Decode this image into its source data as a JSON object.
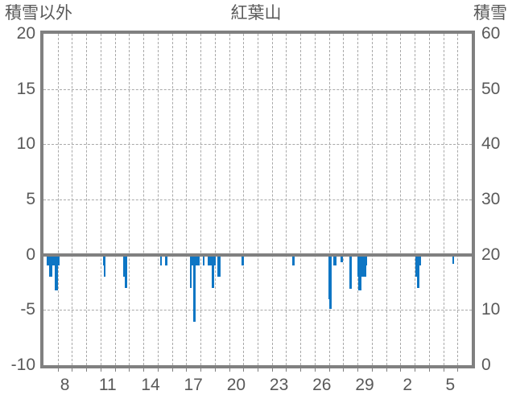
{
  "header": {
    "left_axis_title": "積雪以外",
    "chart_title": "紅葉山",
    "right_axis_title": "積雪"
  },
  "colors": {
    "bar": "#0E76C4",
    "frame": "#808080",
    "gridline": "#a9a9a9",
    "text": "#595959",
    "background": "#ffffff"
  },
  "chart_data": {
    "type": "bar",
    "title": "紅葉山",
    "orientation": "vertical-negative",
    "left_axis": {
      "label": "積雪以外",
      "ticks": [
        20,
        15,
        10,
        5,
        0,
        -5,
        -10
      ],
      "range": [
        -10,
        20
      ]
    },
    "right_axis": {
      "label": "積雪",
      "ticks": [
        60,
        50,
        40,
        30,
        20,
        10,
        0
      ],
      "range": [
        0,
        60
      ]
    },
    "x_axis": {
      "tick_labels": [
        "8",
        "11",
        "14",
        "17",
        "20",
        "23",
        "26",
        "29",
        "2",
        "5"
      ],
      "label_positions_day": [
        8,
        11,
        14,
        17,
        20,
        23,
        26,
        29,
        32,
        35
      ],
      "range_day": [
        6.5,
        36.5
      ],
      "gridline_every_day": 1
    },
    "grid": {
      "h_dashed_at": [
        15,
        10,
        5,
        -5
      ],
      "zero_line_at": 0
    },
    "legend": "none",
    "bars": [
      {
        "d0": 6.72,
        "d1": 7.62,
        "v": -1
      },
      {
        "d0": 6.91,
        "d1": 7.12,
        "v": -2
      },
      {
        "d0": 7.29,
        "d1": 7.51,
        "v": -3.2
      },
      {
        "d0": 10.65,
        "d1": 10.87,
        "v": -1
      },
      {
        "d0": 10.72,
        "d1": 10.87,
        "v": -2
      },
      {
        "d0": 12.11,
        "d1": 12.35,
        "v": -2
      },
      {
        "d0": 12.19,
        "d1": 12.35,
        "v": -3
      },
      {
        "d0": 14.65,
        "d1": 14.8,
        "v": -1
      },
      {
        "d0": 14.99,
        "d1": 15.18,
        "v": -1
      },
      {
        "d0": 16.76,
        "d1": 17.45,
        "v": -1
      },
      {
        "d0": 16.76,
        "d1": 16.89,
        "v": -3
      },
      {
        "d0": 17.0,
        "d1": 17.15,
        "v": -6.1
      },
      {
        "d0": 17.64,
        "d1": 17.79,
        "v": -1
      },
      {
        "d0": 18.01,
        "d1": 18.57,
        "v": -1
      },
      {
        "d0": 18.26,
        "d1": 18.43,
        "v": -3
      },
      {
        "d0": 18.69,
        "d1": 18.88,
        "v": -2
      },
      {
        "d0": 20.37,
        "d1": 20.52,
        "v": -1
      },
      {
        "d0": 23.94,
        "d1": 24.09,
        "v": -1
      },
      {
        "d0": 26.46,
        "d1": 26.69,
        "v": -4
      },
      {
        "d0": 26.54,
        "d1": 26.69,
        "v": -4.9
      },
      {
        "d0": 26.8,
        "d1": 27.03,
        "v": -1
      },
      {
        "d0": 27.31,
        "d1": 27.46,
        "v": -0.7
      },
      {
        "d0": 27.91,
        "d1": 28.09,
        "v": -3.1
      },
      {
        "d0": 28.52,
        "d1": 29.09,
        "v": -2
      },
      {
        "d0": 28.56,
        "d1": 28.75,
        "v": -3.2
      },
      {
        "d0": 28.99,
        "d1": 29.18,
        "v": -1
      },
      {
        "d0": 32.58,
        "d1": 32.95,
        "v": -1
      },
      {
        "d0": 32.58,
        "d1": 32.74,
        "v": -2
      },
      {
        "d0": 32.65,
        "d1": 32.82,
        "v": -3
      },
      {
        "d0": 35.12,
        "d1": 35.27,
        "v": -0.8
      }
    ]
  }
}
